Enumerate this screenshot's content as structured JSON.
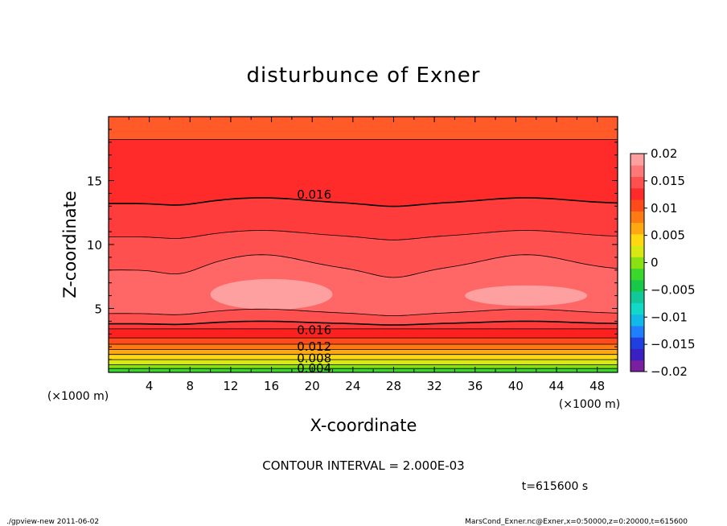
{
  "chart_data": {
    "type": "heatmap",
    "title": "disturbunce of Exner",
    "xlabel": "X-coordinate",
    "ylabel": "Z-coordinate",
    "x_unit": "(×1000 m)",
    "y_unit": "(×1000 m)",
    "xlim": [
      0,
      50
    ],
    "ylim": [
      0,
      20
    ],
    "x_ticks": [
      4,
      8,
      12,
      16,
      20,
      24,
      28,
      32,
      36,
      40,
      44,
      48
    ],
    "y_ticks": [
      5,
      10,
      15
    ],
    "contour_interval_text": "CONTOUR INTERVAL = 2.000E-03",
    "time_text": "t=615600 s",
    "contour_labels": [
      {
        "text": "0.016",
        "x": 18.5,
        "y": 13.9
      },
      {
        "text": "0.016",
        "x": 18.5,
        "y": 3.3
      },
      {
        "text": "0.012",
        "x": 18.5,
        "y": 2.0
      },
      {
        "text": "0.008",
        "x": 18.5,
        "y": 1.1
      },
      {
        "text": "0.004",
        "x": 18.5,
        "y": 0.3
      }
    ],
    "colorbar": {
      "min": -0.02,
      "max": 0.02,
      "tick_labels": [
        "0.02",
        "0.015",
        "0.01",
        "0.005",
        "0",
        "−0.005",
        "−0.01",
        "−0.015",
        "−0.02"
      ],
      "colors": [
        "#7a1fa0",
        "#3a20c0",
        "#1f3fe0",
        "#1f7fff",
        "#12b8e8",
        "#12d8c8",
        "#12c89a",
        "#18c848",
        "#3ad82a",
        "#8ae012",
        "#d8e812",
        "#ffd812",
        "#ffa812",
        "#ff7a12",
        "#ff4a1a",
        "#ff2a2a",
        "#ff5050",
        "#ff7878",
        "#ffa0a0"
      ]
    },
    "bands": [
      {
        "top": 20,
        "color": "#ff5a28"
      },
      {
        "top": 18.2,
        "color": "#ff2a2a"
      },
      {
        "top": 13.2,
        "color": "#ff3c3c",
        "wave": 0.45
      },
      {
        "top": 10.6,
        "color": "#ff5050",
        "wave": 0.5
      },
      {
        "top": 8.0,
        "color": "#ff6666",
        "wave": 1.2
      },
      {
        "top": 4.6,
        "color": "#ff5050",
        "wave": 0.35
      },
      {
        "top": 3.8,
        "color": "#ff3a3a",
        "wave": 0.2
      },
      {
        "top": 3.4,
        "color": "#ff2020"
      },
      {
        "top": 2.7,
        "color": "#ff4a1a"
      },
      {
        "top": 2.2,
        "color": "#ff7a12"
      },
      {
        "top": 1.8,
        "color": "#ffa812"
      },
      {
        "top": 1.4,
        "color": "#ffd812"
      },
      {
        "top": 1.0,
        "color": "#d8e812"
      },
      {
        "top": 0.6,
        "color": "#8ae012"
      },
      {
        "top": 0.3,
        "color": "#3ad82a"
      }
    ]
  },
  "footer": {
    "left": "./gpview-new   2011-06-02",
    "right": "MarsCond_Exner.nc@Exner,x=0:50000,z=0:20000,t=615600"
  }
}
